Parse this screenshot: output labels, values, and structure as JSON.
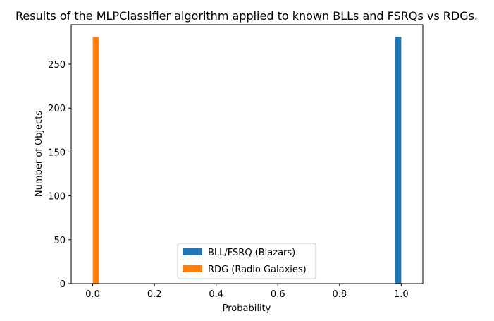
{
  "chart_data": {
    "type": "bar",
    "title": "Results of the MLPClassifier algorithm applied to known BLLs and FSRQs vs RDGs.",
    "xlabel": "Probability",
    "ylabel": "Number of Objects",
    "xlim": [
      -0.07,
      1.07
    ],
    "ylim": [
      0,
      295
    ],
    "xticks": [
      0.0,
      0.2,
      0.4,
      0.6,
      0.8,
      1.0
    ],
    "xtick_labels": [
      "0.0",
      "0.2",
      "0.4",
      "0.6",
      "0.8",
      "1.0"
    ],
    "yticks": [
      0,
      50,
      100,
      150,
      200,
      250
    ],
    "ytick_labels": [
      "0",
      "50",
      "100",
      "150",
      "200",
      "250"
    ],
    "bin_width": 0.02,
    "series": [
      {
        "name": "BLL/FSRQ (Blazars)",
        "color": "#1f77b4",
        "bins": [
          {
            "x0": 0.98,
            "x1": 1.0,
            "count": 281
          }
        ]
      },
      {
        "name": "RDG (Radio Galaxies)",
        "color": "#ff7f0e",
        "bins": [
          {
            "x0": 0.0,
            "x1": 0.02,
            "count": 281
          }
        ]
      }
    ],
    "grid": false,
    "legend_position": "lower-center"
  }
}
